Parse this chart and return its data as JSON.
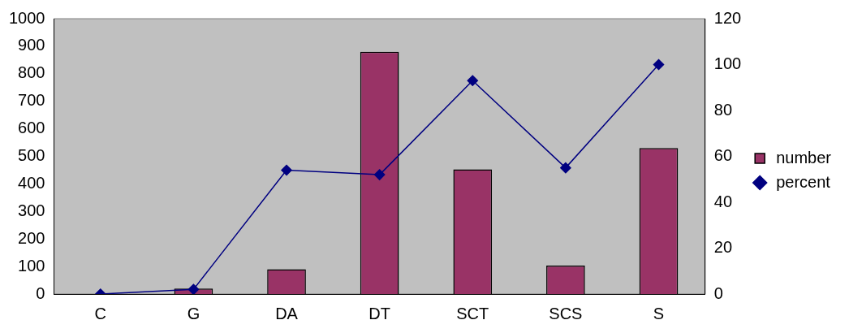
{
  "chart_data": {
    "type": "bar",
    "categories": [
      "C",
      "G",
      "DA",
      "DT",
      "SCT",
      "SCS",
      "S"
    ],
    "series": [
      {
        "name": "number",
        "color": "#993366",
        "values": [
          0,
          20,
          90,
          880,
          453,
          103,
          530
        ]
      },
      {
        "name": "percent",
        "type": "line",
        "axis": "y2",
        "color": "#000080",
        "values": [
          0,
          2,
          54,
          52,
          93,
          55,
          100
        ]
      }
    ],
    "ylim": [
      0,
      1000
    ],
    "yticks": [
      0,
      100,
      200,
      300,
      400,
      500,
      600,
      700,
      800,
      900,
      1000
    ],
    "y2lim": [
      0,
      120
    ],
    "y2ticks": [
      0,
      20,
      40,
      60,
      80,
      100,
      120
    ],
    "grid": false,
    "legend": "right",
    "marker": "diamond"
  }
}
